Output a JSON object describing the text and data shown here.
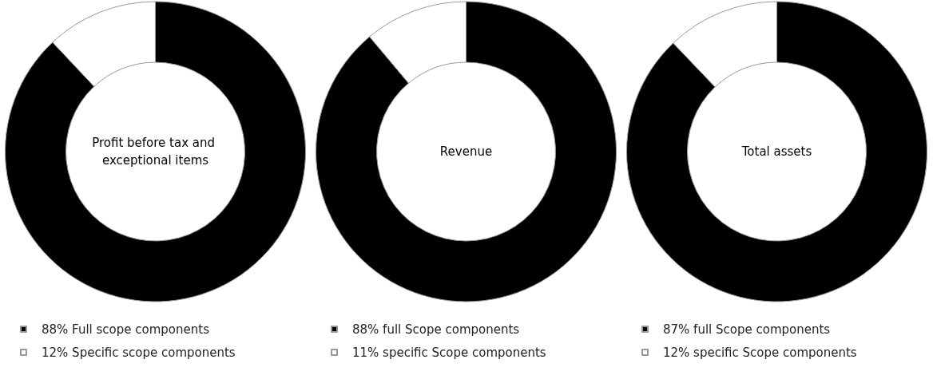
{
  "chart_data": [
    {
      "type": "donut",
      "title": "Profit before tax and exceptional items",
      "categories": [
        "88% Full scope components",
        "12% Specific scope components"
      ],
      "values": [
        88,
        12
      ],
      "colors": [
        "#000000",
        "#ffffff"
      ],
      "legend": "bottom"
    },
    {
      "type": "donut",
      "title": "Revenue",
      "categories": [
        "88% full Scope components",
        "11% specific Scope components"
      ],
      "values": [
        88,
        11
      ],
      "colors": [
        "#000000",
        "#ffffff"
      ],
      "legend": "bottom"
    },
    {
      "type": "donut",
      "title": "Total assets",
      "categories": [
        "87% full Scope components",
        "12% specific Scope components"
      ],
      "values": [
        87,
        12
      ],
      "colors": [
        "#000000",
        "#ffffff"
      ],
      "legend": "bottom"
    }
  ]
}
